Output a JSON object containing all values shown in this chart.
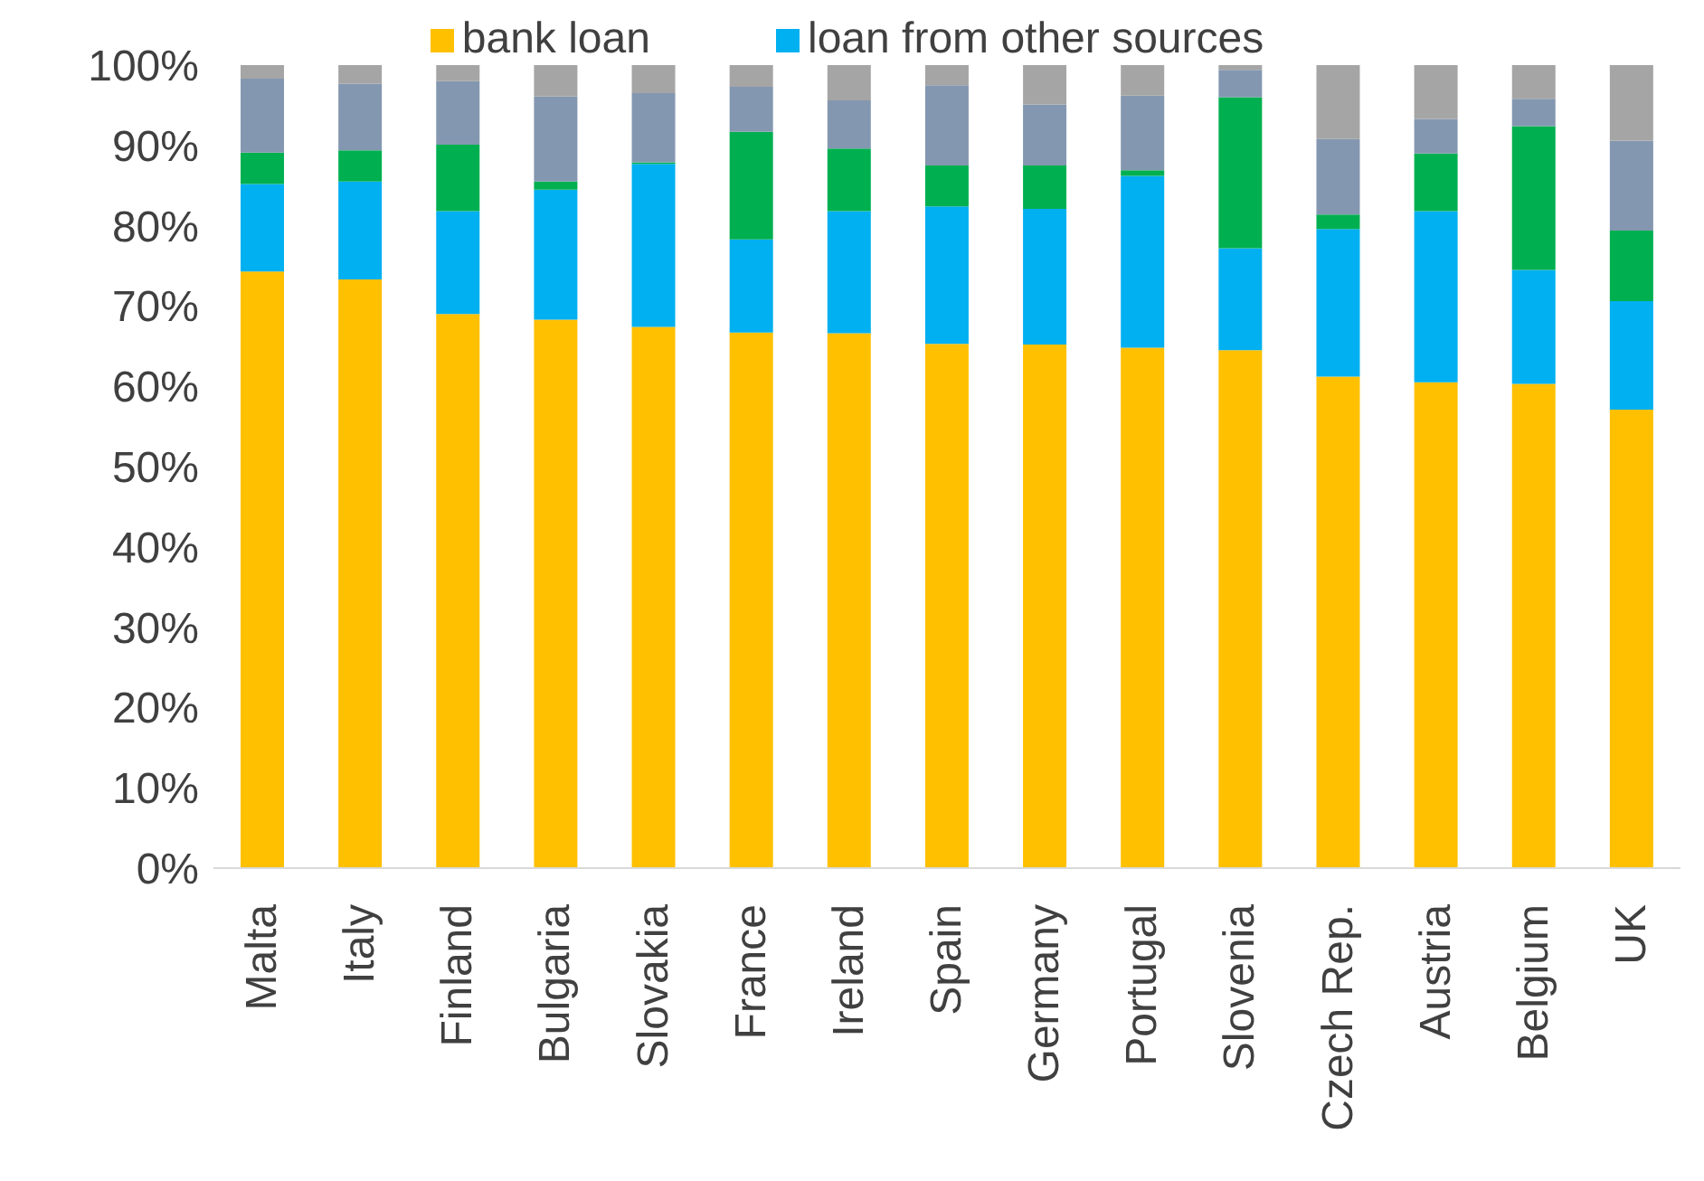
{
  "chart_data": {
    "type": "bar",
    "stacked": true,
    "categories": [
      "Malta",
      "Italy",
      "Finland",
      "Bulgaria",
      "Slovakia",
      "France",
      "Ireland",
      "Spain",
      "Germany",
      "Portugal",
      "Slovenia",
      "Czech Rep.",
      "Austria",
      "Belgium",
      "UK"
    ],
    "series": [
      {
        "name": "bank loan",
        "color": "#ffc000",
        "values": [
          74.3,
          73.3,
          69.0,
          68.3,
          67.4,
          66.7,
          66.6,
          65.3,
          65.2,
          64.8,
          64.5,
          61.2,
          60.5,
          60.3,
          57.1
        ]
      },
      {
        "name": "loan from other sources",
        "color": "#00b0f0",
        "values": [
          10.9,
          12.2,
          12.8,
          16.2,
          20.3,
          11.6,
          15.2,
          17.1,
          16.9,
          21.4,
          12.7,
          18.4,
          21.3,
          14.2,
          13.5
        ]
      },
      {
        "color": "#00b050",
        "values": [
          3.9,
          3.9,
          8.3,
          1.0,
          0.2,
          13.4,
          7.8,
          5.1,
          5.4,
          0.7,
          18.8,
          1.8,
          7.2,
          17.9,
          8.8
        ]
      },
      {
        "color": "#8497b0",
        "values": [
          9.2,
          8.3,
          7.9,
          10.6,
          8.6,
          5.6,
          6.0,
          10.0,
          7.6,
          9.3,
          3.4,
          9.4,
          4.3,
          3.4,
          11.2
        ]
      },
      {
        "color": "#a5a5a5",
        "values": [
          1.7,
          2.3,
          2.0,
          3.9,
          3.7,
          2.7,
          4.4,
          2.5,
          4.9,
          3.8,
          0.6,
          9.2,
          6.7,
          4.2,
          9.4
        ]
      }
    ],
    "ylim": [
      0,
      100
    ],
    "yticks": [
      {
        "value": 0,
        "label": "0%"
      },
      {
        "value": 10,
        "label": "10%"
      },
      {
        "value": 20,
        "label": "20%"
      },
      {
        "value": 30,
        "label": "30%"
      },
      {
        "value": 40,
        "label": "40%"
      },
      {
        "value": 50,
        "label": "50%"
      },
      {
        "value": 60,
        "label": "60%"
      },
      {
        "value": 70,
        "label": "70%"
      },
      {
        "value": 80,
        "label": "80%"
      },
      {
        "value": 90,
        "label": "90%"
      },
      {
        "value": 100,
        "label": "100%"
      }
    ],
    "grid": false,
    "legend": "top"
  }
}
